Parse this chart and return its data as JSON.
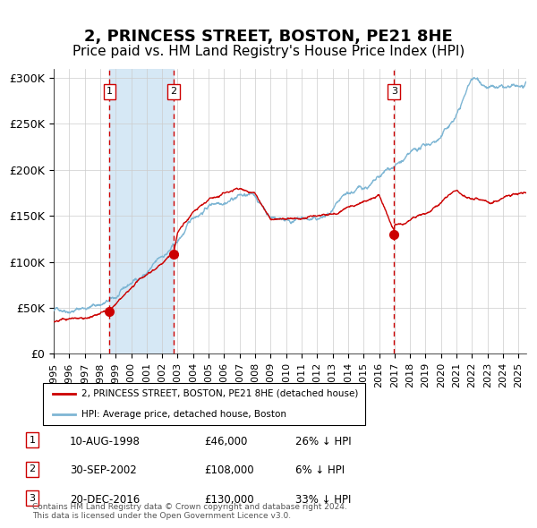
{
  "title": "2, PRINCESS STREET, BOSTON, PE21 8HE",
  "subtitle": "Price paid vs. HM Land Registry's House Price Index (HPI)",
  "title_fontsize": 13,
  "subtitle_fontsize": 11,
  "ylabel_ticks": [
    "£0",
    "£50K",
    "£100K",
    "£150K",
    "£200K",
    "£250K",
    "£300K"
  ],
  "ytick_vals": [
    0,
    50000,
    100000,
    150000,
    200000,
    250000,
    300000
  ],
  "ylim": [
    0,
    310000
  ],
  "xlim_start": 1995.0,
  "xlim_end": 2025.5,
  "sale_dates": [
    1998.61,
    2002.75,
    2016.97
  ],
  "sale_prices": [
    46000,
    108000,
    130000
  ],
  "sale_labels": [
    "1",
    "2",
    "3"
  ],
  "shaded_region": [
    1998.61,
    2002.75
  ],
  "hpi_line_color": "#7eb6d4",
  "price_line_color": "#cc0000",
  "dot_color": "#cc0000",
  "dashed_line_color": "#cc0000",
  "shaded_color": "#d6e8f5",
  "background_color": "#ffffff",
  "grid_color": "#cccccc",
  "legend_entries": [
    "2, PRINCESS STREET, BOSTON, PE21 8HE (detached house)",
    "HPI: Average price, detached house, Boston"
  ],
  "table_rows": [
    [
      "1",
      "10-AUG-1998",
      "£46,000",
      "26% ↓ HPI"
    ],
    [
      "2",
      "30-SEP-2002",
      "£108,000",
      "6% ↓ HPI"
    ],
    [
      "3",
      "20-DEC-2016",
      "£130,000",
      "33% ↓ HPI"
    ]
  ],
  "footer": "Contains HM Land Registry data © Crown copyright and database right 2024.\nThis data is licensed under the Open Government Licence v3.0.",
  "year_ticks": [
    1995,
    1996,
    1997,
    1998,
    1999,
    2000,
    2001,
    2002,
    2003,
    2004,
    2005,
    2006,
    2007,
    2008,
    2009,
    2010,
    2011,
    2012,
    2013,
    2014,
    2015,
    2016,
    2017,
    2018,
    2019,
    2020,
    2021,
    2022,
    2023,
    2024,
    2025
  ]
}
